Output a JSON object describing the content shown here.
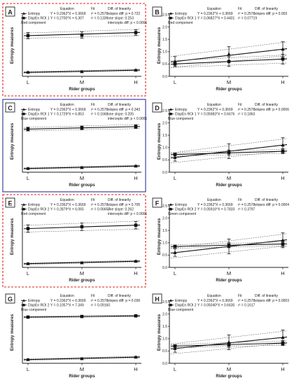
{
  "chart_data": [
    {
      "panel": "A",
      "type": "line",
      "border": "red-dashed",
      "categories": [
        "L",
        "M",
        "H"
      ],
      "xlabel": "Rider groups",
      "ylabel": "Entropy measures",
      "ylim": [
        0,
        10
      ],
      "table_header": {
        "equation": "Equation",
        "fit": "Fit",
        "diff": "Diff. of linearity"
      },
      "table_rows": [
        {
          "name": "Entropy",
          "eq": "Y = 0.2362*X + 0.3669",
          "fit": "r² = 0.2578",
          "diff": "slopes diff: p = 0.722"
        },
        {
          "name": "DispEn ROI 1",
          "eq": "Y = 0.2700*X + 6.307",
          "fit": "r² = 0.1339",
          "diff": "one slope: 0.253"
        }
      ],
      "component": "Red component",
      "extra_notes": [
        "intercepts diff: p < 0.0001"
      ],
      "series": [
        {
          "name": "Entropy",
          "values": [
            0.65,
            0.75,
            1.0
          ],
          "err": [
            0.12,
            0.12,
            0.12
          ],
          "marker": "triangle"
        },
        {
          "name": "DispEn ROI 1",
          "values": [
            6.6,
            6.7,
            7.1
          ],
          "err": [
            0.5,
            0.5,
            0.45
          ],
          "marker": "square"
        }
      ]
    },
    {
      "panel": "B",
      "type": "line",
      "border": "none",
      "categories": [
        "L",
        "M",
        "H"
      ],
      "xlabel": "Rider groups",
      "ylabel": "Entropy measures",
      "ylim": [
        0,
        2.5
      ],
      "yticks": [
        "0.0",
        "0.5",
        "1.0",
        "1.5",
        "2.0",
        "2.5"
      ],
      "table_header": {
        "equation": "Equation",
        "fit": "Fit",
        "diff": "Diff. of linearity"
      },
      "table_rows": [
        {
          "name": "Entropy",
          "eq": "Y = 0.2362*X + 0.3669",
          "fit": "r² = 0.2578",
          "diff": "slopes diff: p = 0.003"
        },
        {
          "name": "DispEn ROI 1",
          "eq": "Y = 0.06827*X + 0.4401",
          "fit": "r² = 0.07719",
          "diff": ""
        }
      ],
      "component": "Red component",
      "extra_notes": [],
      "series": [
        {
          "name": "Entropy",
          "values": [
            0.6,
            0.9,
            1.1
          ],
          "err": [
            0.2,
            0.3,
            0.3
          ],
          "marker": "triangle"
        },
        {
          "name": "DispEn ROI 1",
          "values": [
            0.5,
            0.6,
            0.7
          ],
          "err": [
            0.1,
            0.2,
            0.2
          ],
          "marker": "square"
        }
      ]
    },
    {
      "panel": "C",
      "type": "line",
      "border": "blue-solid",
      "categories": [
        "L",
        "M",
        "H"
      ],
      "xlabel": "Rider groups",
      "ylabel": "Entropy measures",
      "ylim": [
        0,
        10
      ],
      "table_header": {
        "equation": "Equation",
        "fit": "Fit",
        "diff": "Diff. of linearity"
      },
      "table_rows": [
        {
          "name": "Entropy",
          "eq": "Y = 0.2362*X + 0.3669",
          "fit": "r² = 0.2578",
          "diff": "slopes diff: p = 0.343"
        },
        {
          "name": "DispEn ROI 1",
          "eq": "Y = 0.1729*X + 6.853",
          "fit": "r² = 0.1668",
          "diff": "one slope: 0.205"
        }
      ],
      "component": "Blue component",
      "extra_notes": [
        "intercepts diff: p < 0.0001"
      ],
      "series": [
        {
          "name": "Entropy",
          "values": [
            0.6,
            0.75,
            1.0
          ],
          "err": [
            0.12,
            0.12,
            0.12
          ],
          "marker": "triangle"
        },
        {
          "name": "DispEn ROI 1",
          "values": [
            7.0,
            7.2,
            7.4
          ],
          "err": [
            0.3,
            0.3,
            0.3
          ],
          "marker": "square"
        }
      ]
    },
    {
      "panel": "D",
      "type": "line",
      "border": "none",
      "categories": [
        "L",
        "M",
        "H"
      ],
      "xlabel": "Rider groups",
      "ylabel": "Entropy measures",
      "ylim": [
        0,
        2.5
      ],
      "yticks": [
        "0.0",
        "0.5",
        "1.0",
        "1.5",
        "2.0",
        "2.5"
      ],
      "table_header": {
        "equation": "Equation",
        "fit": "Fit",
        "diff": "Diff. of linearity"
      },
      "table_rows": [
        {
          "name": "Entropy",
          "eq": "Y = 0.2362*X + 0.3669",
          "fit": "r² = 0.2578",
          "diff": "slopes diff: p = 0.0006"
        },
        {
          "name": "DispEn ROI 1",
          "eq": "Y = 0.05983*X + 0.6676",
          "fit": "r² = 0.1863",
          "diff": ""
        }
      ],
      "component": "Blue component",
      "extra_notes": [],
      "series": [
        {
          "name": "Entropy",
          "values": [
            0.6,
            0.85,
            1.1
          ],
          "err": [
            0.15,
            0.3,
            0.3
          ],
          "marker": "triangle"
        },
        {
          "name": "DispEn ROI 1",
          "values": [
            0.72,
            0.8,
            0.85
          ],
          "err": [
            0.05,
            0.1,
            0.1
          ],
          "marker": "square"
        }
      ]
    },
    {
      "panel": "E",
      "type": "line",
      "border": "red-dashed",
      "categories": [
        "L",
        "M",
        "H"
      ],
      "xlabel": "Rider groups",
      "ylabel": "Entropy measures",
      "ylim": [
        0,
        10
      ],
      "table_header": {
        "equation": "Equation",
        "fit": "Fit",
        "diff": "Diff. of linearity"
      },
      "table_rows": [
        {
          "name": "Entropy",
          "eq": "Y = 0.2362*X + 0.3669",
          "fit": "r² = 0.2578",
          "diff": "slopes diff: p = 0.705"
        },
        {
          "name": "DispEn ROI 2",
          "eq": "Y = 0.2879*X + 6.065",
          "fit": "r² = 0.06657",
          "diff": "one slope: 0.262"
        }
      ],
      "component": "Red component",
      "extra_notes": [
        "intercepts diff: p < 0.0001"
      ],
      "series": [
        {
          "name": "Entropy",
          "values": [
            0.6,
            0.75,
            1.0
          ],
          "err": [
            0.12,
            0.12,
            0.12
          ],
          "marker": "triangle"
        },
        {
          "name": "DispEn ROI 2",
          "values": [
            6.3,
            6.6,
            6.85
          ],
          "err": [
            0.6,
            0.6,
            0.6
          ],
          "marker": "square"
        }
      ]
    },
    {
      "panel": "F",
      "type": "line",
      "border": "none",
      "categories": [
        "L",
        "M",
        "H"
      ],
      "xlabel": "Rider groups",
      "ylabel": "Entropy measures",
      "ylim": [
        0,
        2.5
      ],
      "yticks": [
        "0.0",
        "0.5",
        "1.0",
        "1.5",
        "2.0",
        "2.5"
      ],
      "table_header": {
        "equation": "Equation",
        "fit": "Fit",
        "diff": "Diff. of linearity"
      },
      "table_rows": [
        {
          "name": "Entropy",
          "eq": "Y = 0.2362*X + 0.3669",
          "fit": "r² = 0.2578",
          "diff": "slopes diff: p = 0.0004"
        },
        {
          "name": "DispEn ROI 2",
          "eq": "Y = 0.05916*X + 0.7833",
          "fit": "r² = 0.3797",
          "diff": ""
        }
      ],
      "component": "Green component",
      "extra_notes": [],
      "series": [
        {
          "name": "Entropy",
          "values": [
            0.6,
            0.85,
            1.1
          ],
          "err": [
            0.15,
            0.3,
            0.3
          ],
          "marker": "triangle"
        },
        {
          "name": "DispEn ROI 2",
          "values": [
            0.85,
            0.9,
            0.95
          ],
          "err": [
            0.05,
            0.1,
            0.1
          ],
          "marker": "square"
        }
      ]
    },
    {
      "panel": "G",
      "type": "line",
      "border": "none",
      "categories": [
        "L",
        "M",
        "H"
      ],
      "xlabel": "Rider groups",
      "ylabel": "Entropy measures",
      "ylim": [
        0,
        10
      ],
      "table_header": {
        "equation": "Equation",
        "fit": "Fit",
        "diff": "Diff. of linearity"
      },
      "table_rows": [
        {
          "name": "Entropy",
          "eq": "Y = 0.2362*X + 0.3669",
          "fit": "r² = 0.2578",
          "diff": "slopes diff: p = 0.036"
        },
        {
          "name": "DispEn ROI 2",
          "eq": "Y = 0.1057*X + 7.349",
          "fit": "r² = 0.09160",
          "diff": ""
        }
      ],
      "component": "Blue component",
      "extra_notes": [],
      "series": [
        {
          "name": "Entropy",
          "values": [
            0.6,
            0.75,
            1.0
          ],
          "err": [
            0.12,
            0.12,
            0.12
          ],
          "marker": "triangle"
        },
        {
          "name": "DispEn ROI 2",
          "values": [
            7.5,
            7.6,
            7.7
          ],
          "err": [
            0.12,
            0.12,
            0.12
          ],
          "marker": "square"
        }
      ]
    },
    {
      "panel": "H",
      "type": "line",
      "border": "none",
      "categories": [
        "L",
        "M",
        "H"
      ],
      "xlabel": "Rider groups",
      "ylabel": "Entropy measures",
      "ylim": [
        0,
        2.5
      ],
      "yticks": [
        "0.0",
        "0.5",
        "1.0",
        "1.5",
        "2.0",
        "2.5"
      ],
      "table_header": {
        "equation": "Equation",
        "fit": "Fit",
        "diff": "Diff. of linearity"
      },
      "table_rows": [
        {
          "name": "Entropy",
          "eq": "Y = 0.2362*X + 0.3669",
          "fit": "r² = 0.2578",
          "diff": "slopes diff: p = 0.0003"
        },
        {
          "name": "DispEn ROI 2",
          "eq": "Y = 0.05040*X + 0.6630",
          "fit": "r² = 0.1617",
          "diff": ""
        }
      ],
      "component": "Blue component",
      "extra_notes": [],
      "series": [
        {
          "name": "Entropy",
          "values": [
            0.6,
            0.85,
            1.05
          ],
          "err": [
            0.15,
            0.3,
            0.3
          ],
          "marker": "triangle"
        },
        {
          "name": "DispEn ROI 2",
          "values": [
            0.7,
            0.75,
            0.82
          ],
          "err": [
            0.05,
            0.1,
            0.1
          ],
          "marker": "square"
        }
      ]
    }
  ],
  "colors": {
    "red_border": "#e2231a",
    "blue_border": "#2e3192",
    "line": "#111111",
    "ci": "#555555"
  }
}
